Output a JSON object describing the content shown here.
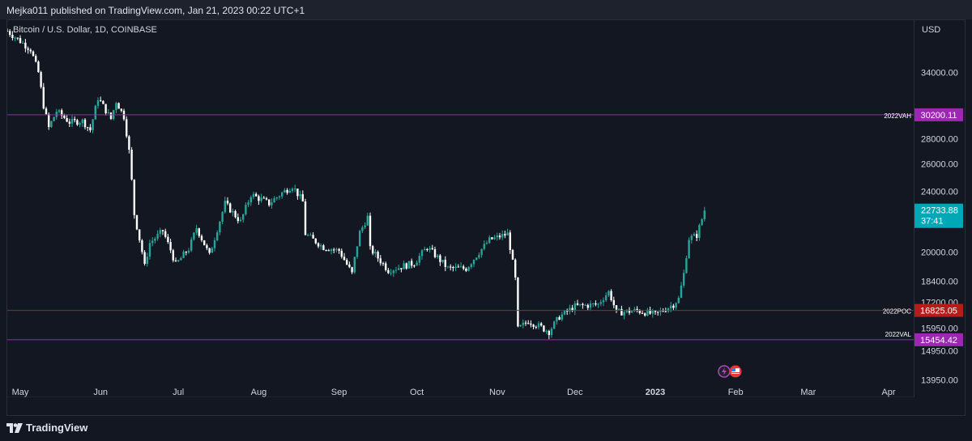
{
  "header": {
    "text": "Mejka011 published on TradingView.com, Jan 21, 2023 00:22 UTC+1"
  },
  "symbol": {
    "text": "Bitcoin / U.S. Dollar, 1D, COINBASE"
  },
  "axis": {
    "unit": "USD"
  },
  "footer": {
    "brand": "TradingView"
  },
  "colors": {
    "up": "#26a69a",
    "down": "#ffffff",
    "vah_val": "#9c27b0",
    "poc": "#b71c1c",
    "price": "#00a8b5",
    "background": "#131722"
  },
  "chart_data": {
    "type": "candlestick",
    "symbol": "Bitcoin / U.S. Dollar, 1D, COINBASE",
    "y_ticks": [
      13950,
      14950,
      15950,
      17200,
      18400,
      20000,
      24000,
      26000,
      28000,
      34000
    ],
    "ylim": [
      13200,
      36500
    ],
    "x_labels": [
      {
        "label": "May",
        "date": "2022-05-01"
      },
      {
        "label": "Jun",
        "date": "2022-06-01"
      },
      {
        "label": "Jul",
        "date": "2022-07-01"
      },
      {
        "label": "Aug",
        "date": "2022-08-01"
      },
      {
        "label": "Sep",
        "date": "2022-09-01"
      },
      {
        "label": "Oct",
        "date": "2022-10-01"
      },
      {
        "label": "Nov",
        "date": "2022-11-01"
      },
      {
        "label": "Dec",
        "date": "2022-12-01"
      },
      {
        "label": "2023",
        "date": "2023-01-01"
      },
      {
        "label": "Feb",
        "date": "2023-02-01"
      },
      {
        "label": "Mar",
        "date": "2023-03-01"
      },
      {
        "label": "Apr",
        "date": "2023-04-01"
      }
    ],
    "xlim": [
      "2022-04-26",
      "2023-04-11"
    ],
    "levels": [
      {
        "name": "2022VAH",
        "value": "30200.11",
        "color": "#9c27b0"
      },
      {
        "name": "2022POC",
        "value": "16825.05",
        "color": "#b71c1c"
      },
      {
        "name": "2022VAL",
        "value": "15454.42",
        "color": "#9c27b0"
      }
    ],
    "last_price": {
      "value": "22733.88",
      "countdown": "37:41"
    },
    "price_path": [
      [
        "2022-04-26",
        38500
      ],
      [
        "2022-05-05",
        36500
      ],
      [
        "2022-05-08",
        34000
      ],
      [
        "2022-05-10",
        31000
      ],
      [
        "2022-05-12",
        29000
      ],
      [
        "2022-05-15",
        30500
      ],
      [
        "2022-05-20",
        29500
      ],
      [
        "2022-05-25",
        29600
      ],
      [
        "2022-05-28",
        28800
      ],
      [
        "2022-05-31",
        31700
      ],
      [
        "2022-06-05",
        29800
      ],
      [
        "2022-06-07",
        31400
      ],
      [
        "2022-06-10",
        30000
      ],
      [
        "2022-06-12",
        27000
      ],
      [
        "2022-06-14",
        22500
      ],
      [
        "2022-06-18",
        19200
      ],
      [
        "2022-06-20",
        20600
      ],
      [
        "2022-06-25",
        21400
      ],
      [
        "2022-06-30",
        19300
      ],
      [
        "2022-07-05",
        20200
      ],
      [
        "2022-07-08",
        21600
      ],
      [
        "2022-07-13",
        19800
      ],
      [
        "2022-07-19",
        23200
      ],
      [
        "2022-07-25",
        22000
      ],
      [
        "2022-07-29",
        23800
      ],
      [
        "2022-08-05",
        23200
      ],
      [
        "2022-08-10",
        23900
      ],
      [
        "2022-08-14",
        24400
      ],
      [
        "2022-08-18",
        23300
      ],
      [
        "2022-08-19",
        21200
      ],
      [
        "2022-08-26",
        20300
      ],
      [
        "2022-09-01",
        20100
      ],
      [
        "2022-09-06",
        18800
      ],
      [
        "2022-09-09",
        21300
      ],
      [
        "2022-09-12",
        22300
      ],
      [
        "2022-09-13",
        20200
      ],
      [
        "2022-09-20",
        19000
      ],
      [
        "2022-09-30",
        19400
      ],
      [
        "2022-10-05",
        20300
      ],
      [
        "2022-10-13",
        19100
      ],
      [
        "2022-10-20",
        19100
      ],
      [
        "2022-10-25",
        20000
      ],
      [
        "2022-10-29",
        20800
      ],
      [
        "2022-11-05",
        21200
      ],
      [
        "2022-11-08",
        18500
      ],
      [
        "2022-11-09",
        15900
      ],
      [
        "2022-11-13",
        16300
      ],
      [
        "2022-11-21",
        15800
      ],
      [
        "2022-11-25",
        16500
      ],
      [
        "2022-12-01",
        17000
      ],
      [
        "2022-12-10",
        17100
      ],
      [
        "2022-12-14",
        17800
      ],
      [
        "2022-12-17",
        16700
      ],
      [
        "2022-12-25",
        16800
      ],
      [
        "2023-01-01",
        16600
      ],
      [
        "2023-01-08",
        17100
      ],
      [
        "2023-01-10",
        17400
      ],
      [
        "2023-01-12",
        18800
      ],
      [
        "2023-01-14",
        20900
      ],
      [
        "2023-01-17",
        21100
      ],
      [
        "2023-01-20",
        22733.88
      ]
    ]
  }
}
